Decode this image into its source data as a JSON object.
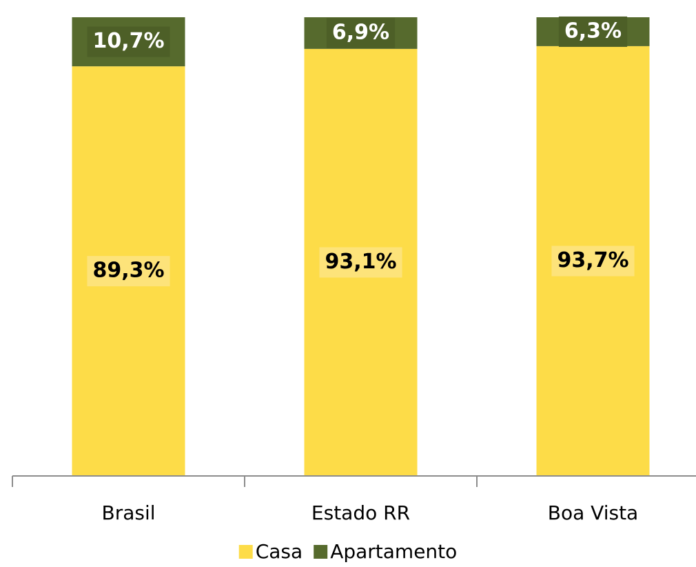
{
  "chart_data": {
    "type": "stacked_bar",
    "categories": [
      "Brasil",
      "Estado RR",
      "Boa Vista"
    ],
    "series": [
      {
        "name": "Casa",
        "color": "#fddc48",
        "values": [
          89.3,
          93.1,
          93.7
        ],
        "value_labels": [
          "89,3%",
          "93,1%",
          "93,7%"
        ]
      },
      {
        "name": "Apartamento",
        "color": "#566a2d",
        "values": [
          10.7,
          6.9,
          6.3
        ],
        "value_labels": [
          "10,7%",
          "6,9%",
          "6,3%"
        ]
      }
    ],
    "ylim": [
      0,
      100
    ],
    "legend": "bottom"
  }
}
